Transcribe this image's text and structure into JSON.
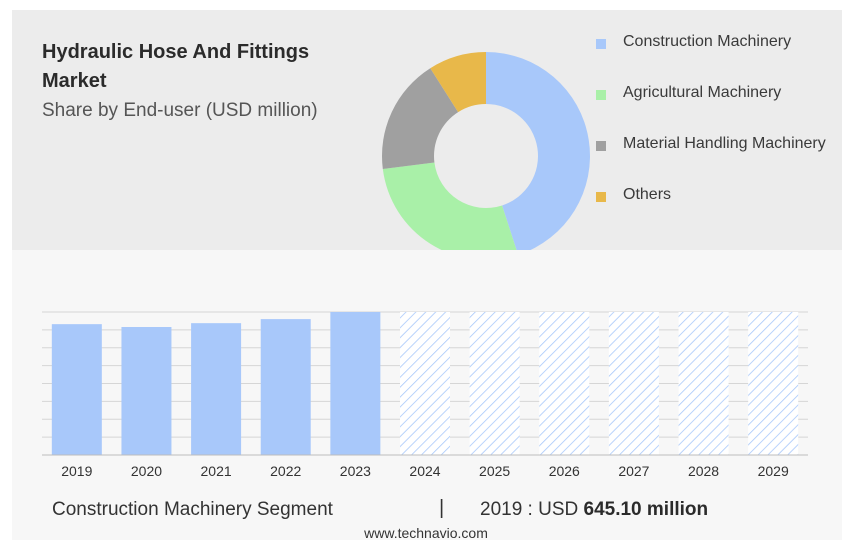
{
  "header": {
    "title": "Hydraulic Hose And Fittings Market",
    "subtitle": "Share by End-user (USD million)"
  },
  "legend": {
    "items": [
      {
        "label": "Construction Machinery",
        "color": "#a8c8fa"
      },
      {
        "label": "Agricultural Machinery",
        "color": "#a9f0a8"
      },
      {
        "label": "Material Handling Machinery",
        "color": "#a0a0a0"
      },
      {
        "label": "Others",
        "color": "#e8b84a"
      }
    ]
  },
  "footer": {
    "segment": "Construction Machinery Segment",
    "separator": "|",
    "year_prefix": "2019 : USD ",
    "value": "645.10 million"
  },
  "source": "www.technavio.com",
  "chart_data": [
    {
      "type": "pie",
      "hole": true,
      "categories": [
        "Construction Machinery",
        "Agricultural Machinery",
        "Material Handling Machinery",
        "Others"
      ],
      "values": [
        45,
        28,
        18,
        9
      ],
      "colors": [
        "#a8c8fa",
        "#a9f0a8",
        "#a0a0a0",
        "#e8b84a"
      ]
    },
    {
      "type": "bar",
      "categories": [
        "2019",
        "2020",
        "2021",
        "2022",
        "2023",
        "2024",
        "2025",
        "2026",
        "2027",
        "2028",
        "2029"
      ],
      "values": [
        645.1,
        631,
        650,
        670,
        705,
        705,
        705,
        705,
        705,
        705,
        705
      ],
      "forecast_from": "2024",
      "bar_color": "#a8c8fa",
      "ylim": [
        0,
        705
      ],
      "grid": true
    }
  ]
}
